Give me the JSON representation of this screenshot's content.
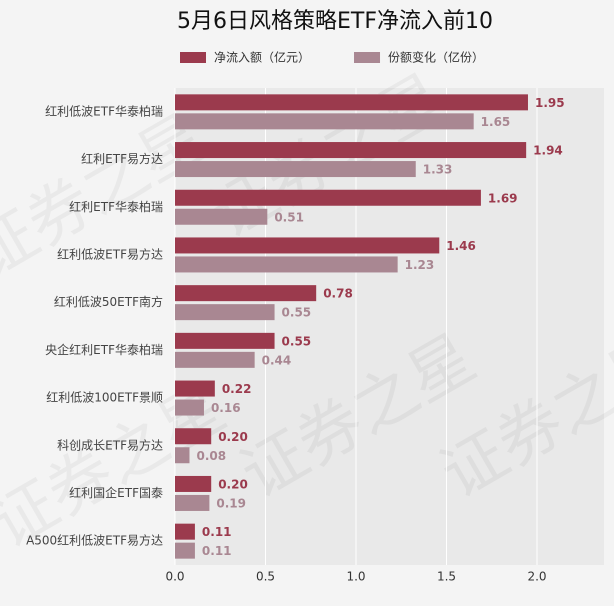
{
  "chart_data": {
    "type": "hbar",
    "title": "5月6日风格策略ETF净流入前10",
    "watermark": "证券之星",
    "categories": [
      "红利低波ETF华泰柏瑞",
      "红利ETF易方达",
      "红利ETF华泰柏瑞",
      "红利低波ETF易方达",
      "红利低波50ETF南方",
      "央企红利ETF华泰柏瑞",
      "红利低波100ETF景顺",
      "科创成长ETF易方达",
      "红利国企ETF国泰",
      "A500红利低波ETF易方达"
    ],
    "series": [
      {
        "name": "净流入额（亿元）",
        "color": "#9b3a4d",
        "values": [
          1.95,
          1.94,
          1.69,
          1.46,
          0.78,
          0.55,
          0.22,
          0.2,
          0.2,
          0.11
        ],
        "value_labels": [
          "1.95",
          "1.94",
          "1.69",
          "1.46",
          "0.78",
          "0.55",
          "0.22",
          "0.20",
          "0.20",
          "0.11"
        ]
      },
      {
        "name": "份额变化（亿份）",
        "color": "#a98792",
        "values": [
          1.65,
          1.33,
          0.51,
          1.23,
          0.55,
          0.44,
          0.16,
          0.08,
          0.19,
          0.11
        ],
        "value_labels": [
          "1.65",
          "1.33",
          "0.51",
          "1.23",
          "0.55",
          "0.44",
          "0.16",
          "0.08",
          "0.19",
          "0.11"
        ]
      }
    ],
    "xlim": [
      0,
      2.37
    ],
    "xticks": [
      {
        "value": 0,
        "label": "0.0"
      },
      0.5,
      {
        "value": 1,
        "label": "1.0"
      },
      1.5,
      {
        "value": 2,
        "label": "2.0"
      }
    ],
    "grid": true,
    "legend": "top"
  }
}
